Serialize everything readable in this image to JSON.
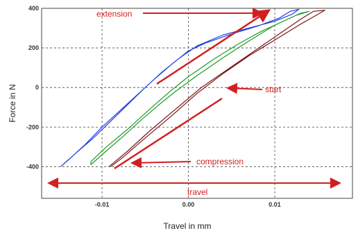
{
  "chart_data": {
    "type": "line",
    "xlabel": "Travel in mm",
    "ylabel": "Force in N",
    "xlim": [
      -0.017,
      0.019
    ],
    "ylim": [
      -560,
      400
    ],
    "x_ticks": [
      -0.01,
      0.0,
      0.01
    ],
    "x_tick_labels": [
      "-0.01",
      "0.00",
      "0.01"
    ],
    "y_ticks": [
      400,
      200,
      0,
      -200,
      -400
    ],
    "y_tick_labels": [
      "400",
      "200",
      "0",
      "-200",
      "-400"
    ],
    "grid": true,
    "series": [
      {
        "color": "#1f3fe0",
        "values": [
          [
            -0.0148,
            -400
          ],
          [
            -0.013,
            -330
          ],
          [
            -0.011,
            -255
          ],
          [
            -0.009,
            -170
          ],
          [
            -0.007,
            -85
          ],
          [
            -0.005,
            0
          ],
          [
            -0.003,
            80
          ],
          [
            -0.001,
            150
          ],
          [
            0.001,
            210
          ],
          [
            0.004,
            265
          ],
          [
            0.007,
            300
          ],
          [
            0.01,
            335
          ],
          [
            0.012,
            370
          ],
          [
            0.0128,
            395
          ],
          [
            0.0118,
            385
          ],
          [
            0.0105,
            350
          ],
          [
            0.008,
            310
          ],
          [
            0.005,
            270
          ],
          [
            0.002,
            225
          ],
          [
            0.0,
            185
          ],
          [
            -0.002,
            115
          ],
          [
            -0.004,
            40
          ],
          [
            -0.006,
            -40
          ],
          [
            -0.008,
            -120
          ],
          [
            -0.01,
            -200
          ],
          [
            -0.012,
            -290
          ],
          [
            -0.014,
            -370
          ],
          [
            -0.0148,
            -400
          ]
        ]
      },
      {
        "color": "#1e9a2a",
        "values": [
          [
            -0.0113,
            -390
          ],
          [
            -0.0095,
            -320
          ],
          [
            -0.0075,
            -245
          ],
          [
            -0.0055,
            -165
          ],
          [
            -0.0035,
            -90
          ],
          [
            -0.0015,
            -20
          ],
          [
            0.001,
            60
          ],
          [
            0.004,
            150
          ],
          [
            0.007,
            235
          ],
          [
            0.01,
            315
          ],
          [
            0.0125,
            365
          ],
          [
            0.014,
            385
          ],
          [
            0.013,
            375
          ],
          [
            0.011,
            335
          ],
          [
            0.0085,
            285
          ],
          [
            0.006,
            225
          ],
          [
            0.003,
            145
          ],
          [
            0.0,
            55
          ],
          [
            -0.002,
            -15
          ],
          [
            -0.0045,
            -110
          ],
          [
            -0.007,
            -210
          ],
          [
            -0.0095,
            -300
          ],
          [
            -0.0113,
            -375
          ],
          [
            -0.0113,
            -390
          ]
        ]
      },
      {
        "color": "#7a1616",
        "values": [
          [
            -0.0092,
            -400
          ],
          [
            -0.007,
            -320
          ],
          [
            -0.0045,
            -220
          ],
          [
            -0.0015,
            -110
          ],
          [
            0.0015,
            0
          ],
          [
            0.0045,
            90
          ],
          [
            0.0075,
            180
          ],
          [
            0.0105,
            270
          ],
          [
            0.013,
            345
          ],
          [
            0.0145,
            385
          ],
          [
            0.0158,
            390
          ],
          [
            0.015,
            370
          ],
          [
            0.013,
            320
          ],
          [
            0.01,
            240
          ],
          [
            0.007,
            160
          ],
          [
            0.004,
            70
          ],
          [
            0.001,
            -30
          ],
          [
            -0.002,
            -145
          ],
          [
            -0.005,
            -255
          ],
          [
            -0.0075,
            -350
          ],
          [
            -0.009,
            -400
          ]
        ]
      }
    ],
    "annotations": [
      {
        "text": "extension",
        "color": "#d21f1f"
      },
      {
        "text": "start",
        "color": "#d21f1f"
      },
      {
        "text": "compression",
        "color": "#d21f1f"
      },
      {
        "text": "travel",
        "color": "#d21f1f"
      }
    ]
  }
}
